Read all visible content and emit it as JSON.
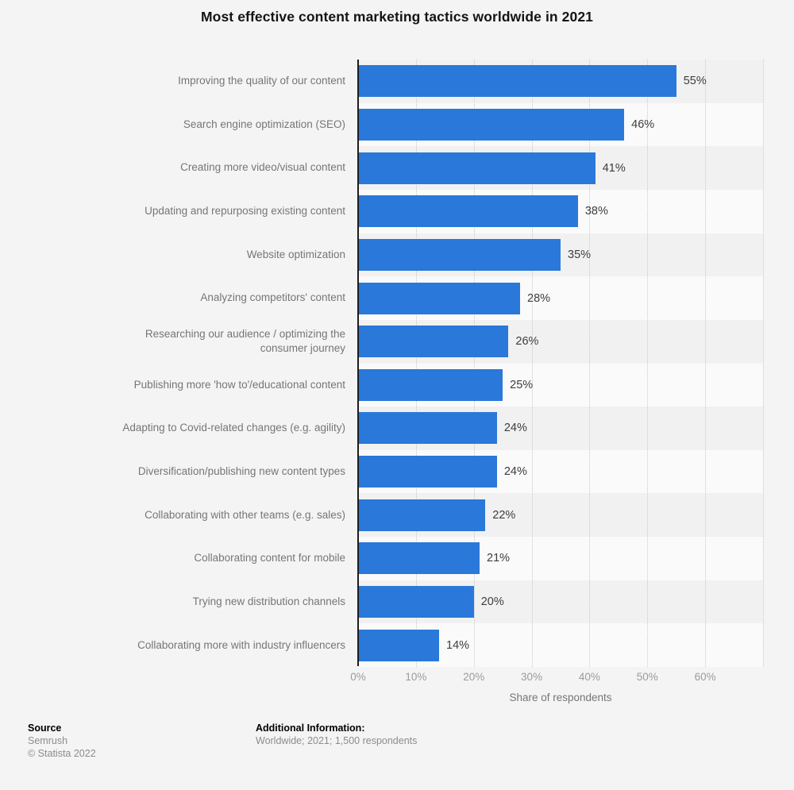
{
  "title": "Most effective content marketing tactics worldwide in 2021",
  "chart_data": {
    "type": "bar",
    "orientation": "horizontal",
    "title": "Most effective content marketing tactics worldwide in 2021",
    "categories": [
      "Improving the quality of our content",
      "Search engine optimization (SEO)",
      "Creating more video/visual content",
      "Updating and repurposing existing content",
      "Website optimization",
      "Analyzing competitors' content",
      "Researching our audience / optimizing the\nconsumer journey",
      "Publishing more 'how to'/educational content",
      "Adapting to Covid-related changes (e.g. agility)",
      "Diversification/publishing new content types",
      "Collaborating with other teams (e.g. sales)",
      "Collaborating content for mobile",
      "Trying new distribution channels",
      "Collaborating more with industry influencers"
    ],
    "values": [
      55,
      46,
      41,
      38,
      35,
      28,
      26,
      25,
      24,
      24,
      22,
      21,
      20,
      14
    ],
    "value_labels": [
      "55%",
      "46%",
      "41%",
      "38%",
      "35%",
      "28%",
      "26%",
      "25%",
      "24%",
      "24%",
      "22%",
      "21%",
      "20%",
      "14%"
    ],
    "xlabel": "Share of respondents",
    "ylabel": "",
    "xlim": [
      0,
      70
    ],
    "xticks": [
      "0%",
      "10%",
      "20%",
      "30%",
      "40%",
      "50%",
      "60%"
    ],
    "grid": "vertical dotted gridlines every 10%, alternating row bands",
    "legend": "none",
    "bar_color": "#2a78d9"
  },
  "colors": {
    "bar": "#2a78d9",
    "page_background": "#f4f4f4",
    "band_dark": "#f1f1f1",
    "band_light": "#fafafa",
    "axis_line": "#1d1d1d",
    "gridline": "#c9c9c9",
    "category_label": "#767676",
    "value_label": "#3d3d3d",
    "tick_label": "#9b9b9b"
  },
  "footer": {
    "source_label": "Source",
    "source_name": "Semrush",
    "copyright": "© Statista 2022",
    "additional_label": "Additional Information:",
    "additional_text": "Worldwide; 2021; 1,500 respondents"
  }
}
